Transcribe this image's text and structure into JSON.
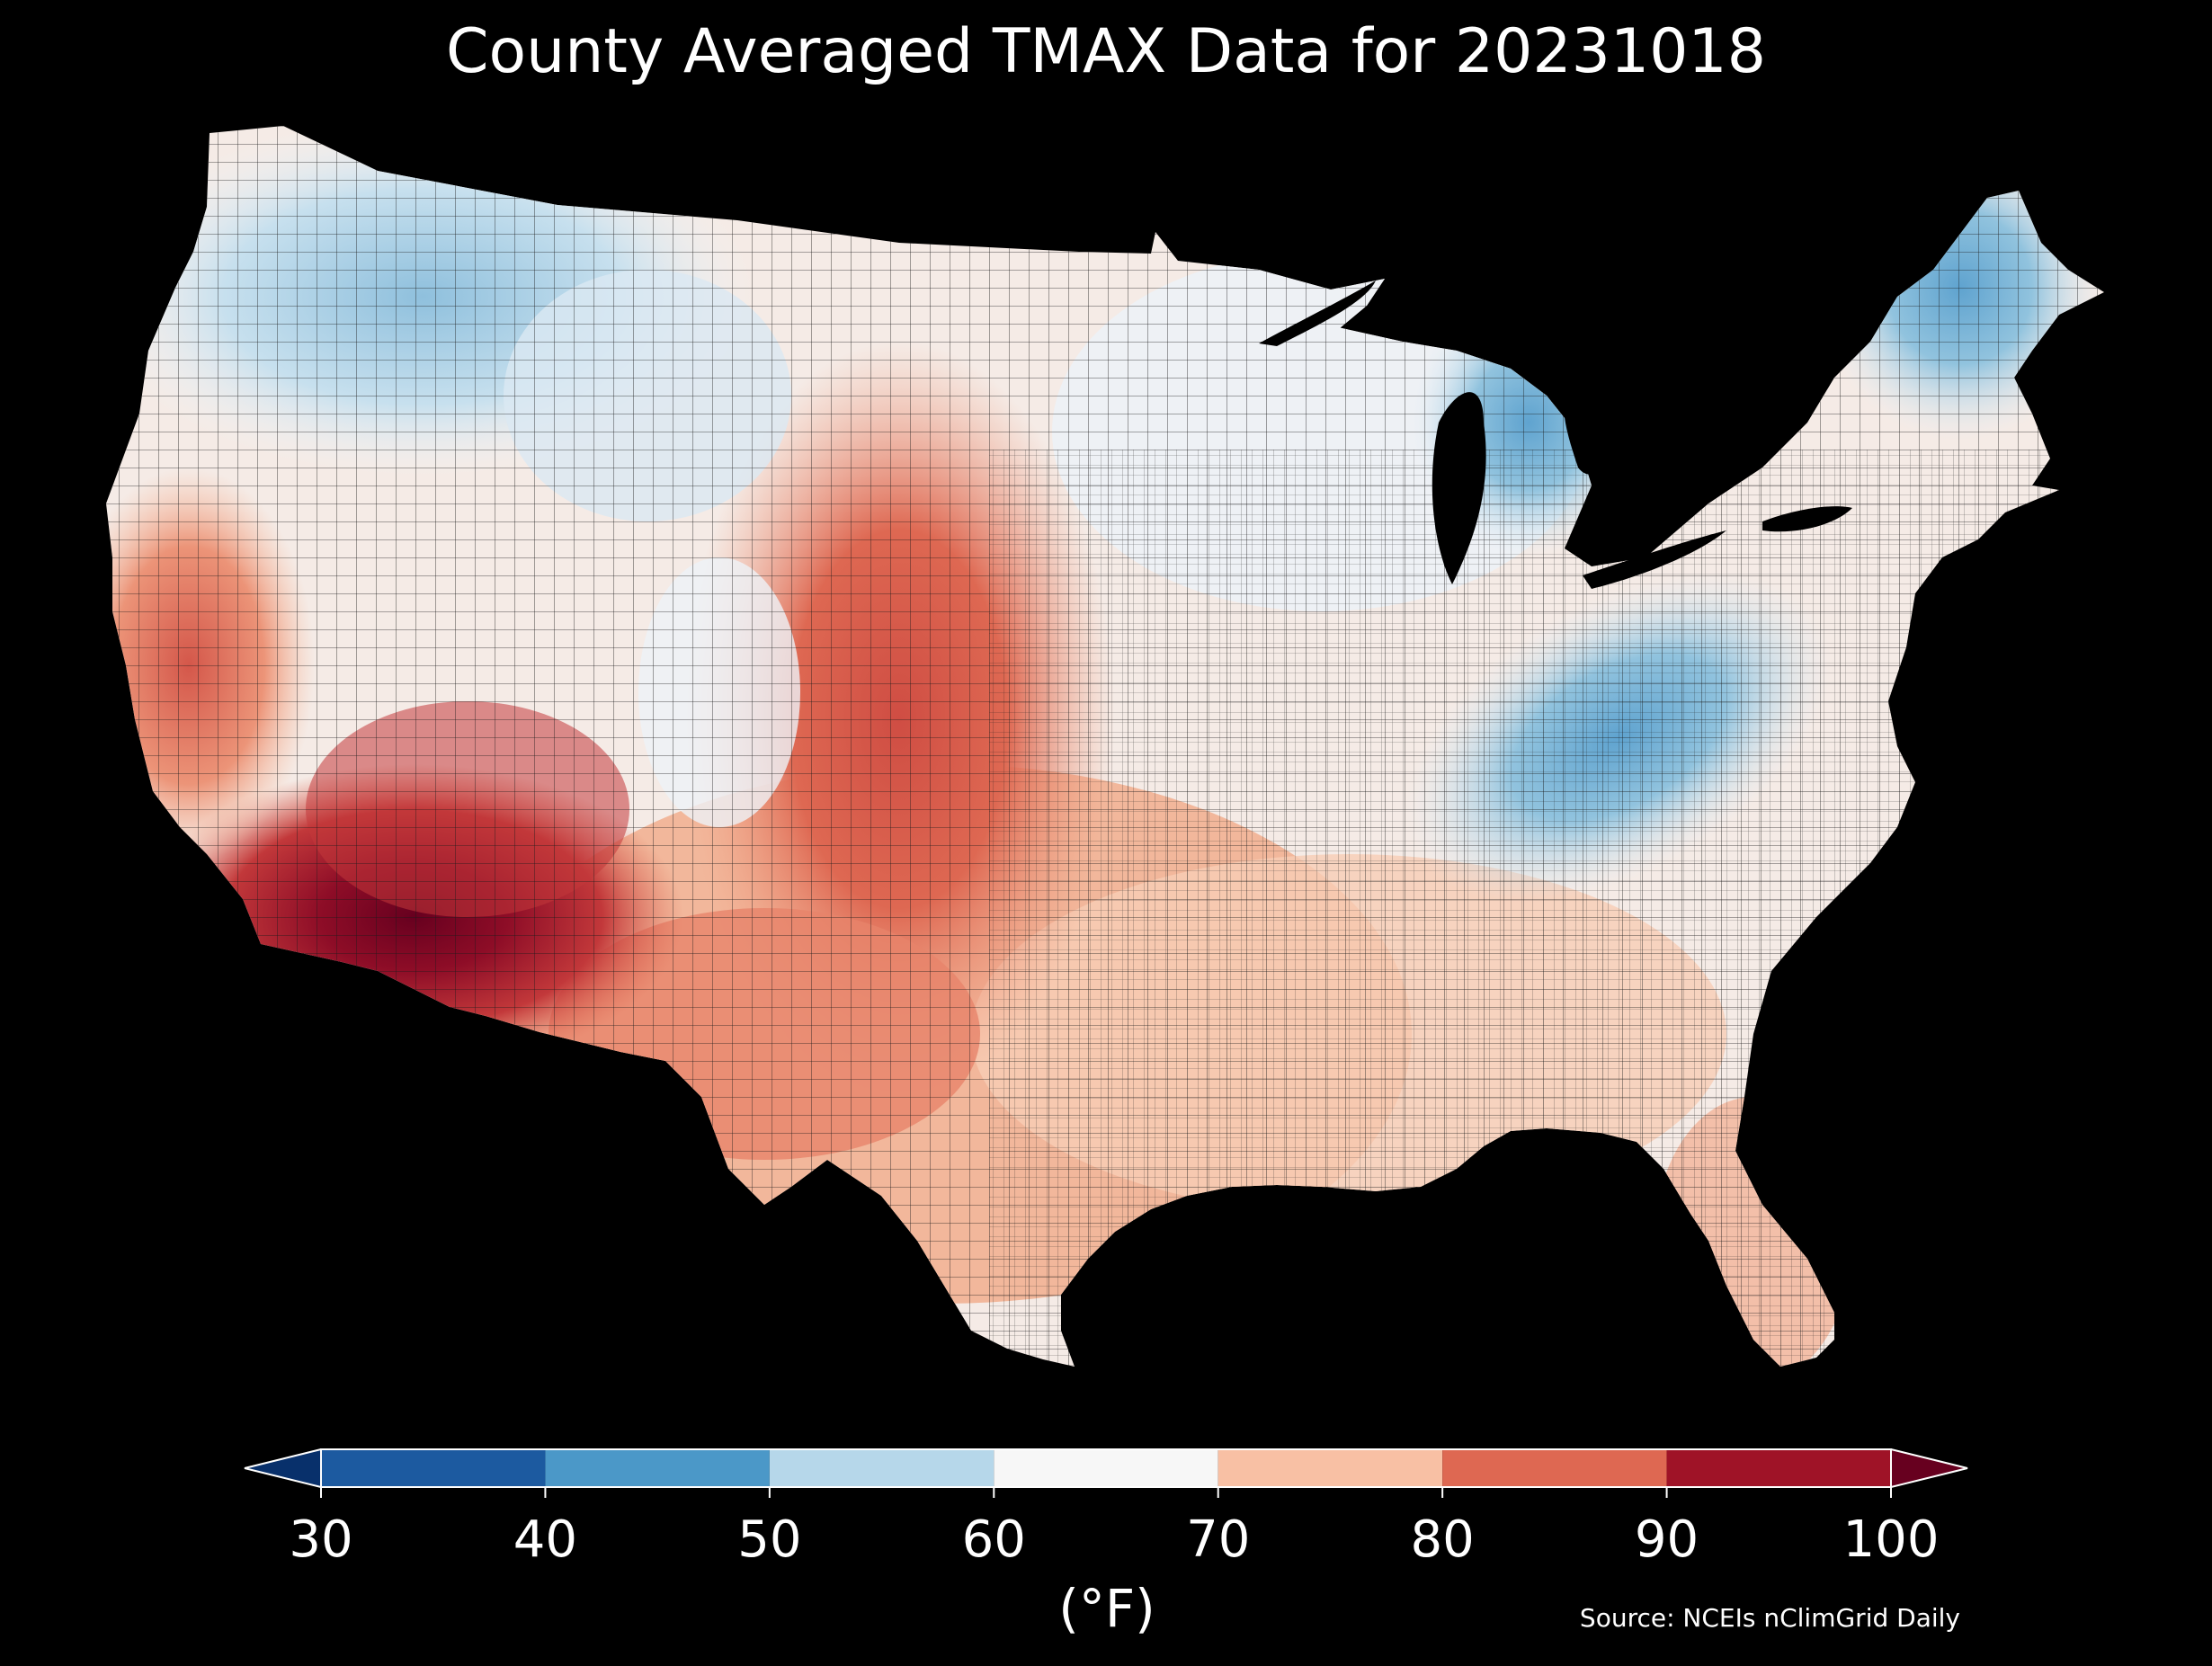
{
  "title": "County Averaged TMAX Data for 20231018",
  "colorbar": {
    "ticks": [
      "30",
      "40",
      "50",
      "60",
      "70",
      "80",
      "90",
      "100"
    ],
    "unit": "(°F)",
    "extend": "both",
    "under_color": "#08306b",
    "over_color": "#67001f",
    "bins": [
      {
        "from": 30,
        "to": 40,
        "color": "#1c5aa0"
      },
      {
        "from": 40,
        "to": 50,
        "color": "#4b98c8"
      },
      {
        "from": 50,
        "to": 60,
        "color": "#b6d7ea"
      },
      {
        "from": 60,
        "to": 70,
        "color": "#f7f7f7"
      },
      {
        "from": 70,
        "to": 80,
        "color": "#f8c0a4"
      },
      {
        "from": 80,
        "to": 90,
        "color": "#de6852"
      },
      {
        "from": 90,
        "to": 100,
        "color": "#9f1327"
      }
    ]
  },
  "source": "Source: NCEIs nClimGrid Daily",
  "colors": {
    "background": "#000000",
    "text": "#ffffff",
    "county_border": "#1a1a1a"
  }
}
